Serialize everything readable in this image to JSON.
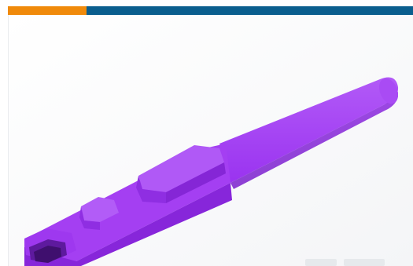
{
  "page": {
    "accent_colors": {
      "orange": "#F08A0B",
      "blue": "#0A5E8E"
    },
    "product_image": {
      "icon": "product-render-image",
      "part_color": "#9A33F0",
      "background": "#ffffff"
    }
  }
}
